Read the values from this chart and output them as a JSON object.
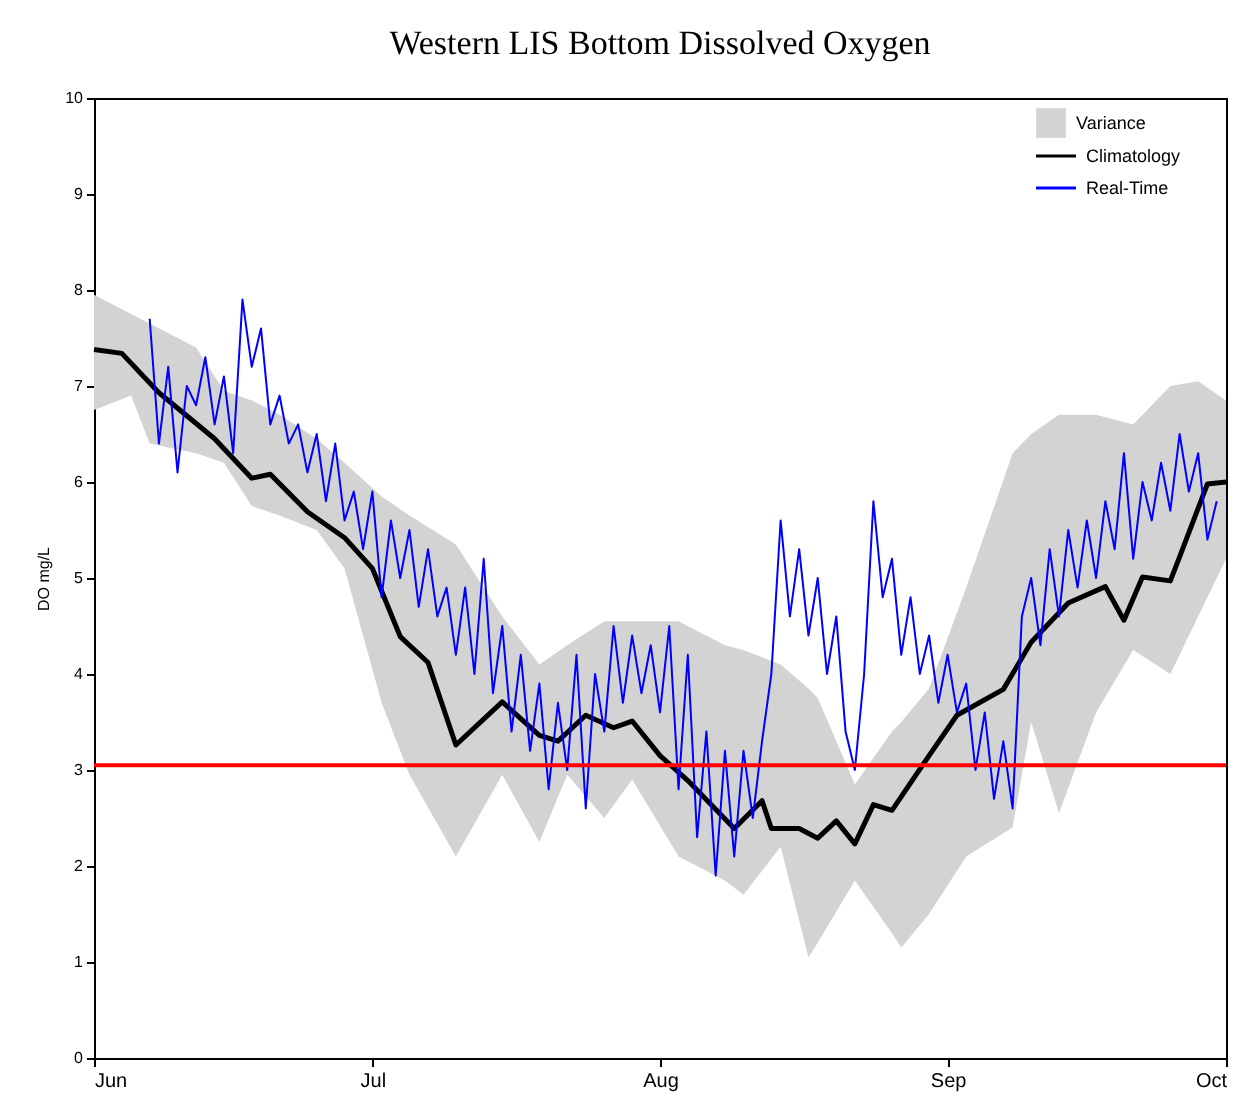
{
  "chart_data": {
    "type": "line",
    "title": "Western LIS Bottom Dissolved Oxygen",
    "ylabel": "DO mg/L",
    "xlim": [
      "--06-01",
      "--10-01"
    ],
    "xticks": [
      {
        "value": "--06-01",
        "label": "Jun"
      },
      {
        "value": "--07-01",
        "label": "Jul"
      },
      {
        "value": "--08-01",
        "label": "Aug"
      },
      {
        "value": "--09-01",
        "label": "Sep"
      },
      {
        "value": "--10-01",
        "label": "Oct"
      }
    ],
    "ylim": [
      0,
      10
    ],
    "yticks": [
      0,
      1,
      2,
      3,
      4,
      5,
      6,
      7,
      8,
      9,
      10
    ],
    "legend": "top right",
    "grid": false,
    "ref_lines": [
      {
        "axis": "y",
        "value": 3.05,
        "color": "#ff0000"
      }
    ],
    "series": [
      {
        "name": "Variance",
        "type": "area",
        "color": "#d3d3d3",
        "values": [
          null,
          null,
          null,
          null,
          null,
          null,
          null,
          null,
          null,
          null,
          null,
          null,
          null,
          null,
          null,
          null,
          null,
          null,
          null,
          null,
          null,
          null,
          null,
          null,
          null,
          null,
          null,
          null,
          null,
          null,
          null,
          null,
          null,
          null,
          null,
          null
        ],
        "x": [
          "--06-01",
          "--06-05",
          "--06-07",
          "--06-12",
          "--06-15",
          "--06-18",
          "--06-21",
          "--06-25",
          "--06-28",
          "--07-02",
          "--07-05",
          "--07-10",
          "--07-15",
          "--07-19",
          "--07-22",
          "--07-26",
          "--07-29",
          "--08-03",
          "--08-08",
          "--08-10",
          "--08-14",
          "--08-17",
          "--08-18",
          "--08-22",
          "--08-26",
          "--08-27",
          "--08-30",
          "--09-03",
          "--09-08",
          "--09-10",
          "--09-13",
          "--09-17",
          "--09-21",
          "--09-25",
          "--09-28",
          "--10-01"
        ],
        "upper": [
          7.95,
          7.75,
          7.65,
          7.4,
          6.95,
          6.85,
          6.7,
          6.45,
          6.2,
          5.85,
          5.65,
          5.35,
          4.6,
          4.1,
          4.3,
          4.55,
          4.55,
          4.55,
          4.3,
          4.25,
          4.1,
          3.85,
          3.75,
          2.85,
          3.4,
          3.5,
          3.85,
          4.9,
          6.3,
          6.5,
          6.7,
          6.7,
          6.6,
          7.0,
          7.05,
          6.85
        ],
        "lower": [
          6.75,
          6.9,
          6.4,
          6.3,
          6.2,
          5.75,
          5.65,
          5.5,
          5.1,
          3.7,
          2.95,
          2.1,
          2.95,
          2.25,
          2.95,
          2.5,
          2.9,
          2.1,
          1.85,
          1.7,
          2.2,
          1.05,
          1.2,
          1.85,
          1.3,
          1.15,
          1.5,
          2.1,
          2.4,
          3.5,
          2.55,
          3.6,
          4.25,
          4.0,
          4.6,
          5.2
        ]
      },
      {
        "name": "Climatology",
        "type": "line",
        "color": "#000000",
        "x": [
          "--06-01",
          "--06-04",
          "--06-08",
          "--06-14",
          "--06-18",
          "--06-20",
          "--06-24",
          "--06-28",
          "--07-01",
          "--07-04",
          "--07-07",
          "--07-10",
          "--07-15",
          "--07-19",
          "--07-21",
          "--07-24",
          "--07-27",
          "--07-29",
          "--08-01",
          "--08-04",
          "--08-09",
          "--08-12",
          "--08-13",
          "--08-16",
          "--08-18",
          "--08-20",
          "--08-22",
          "--08-24",
          "--08-26",
          "--08-30",
          "--09-02",
          "--09-07",
          "--09-10",
          "--09-14",
          "--09-18",
          "--09-20",
          "--09-22",
          "--09-25",
          "--09-26",
          "--09-29",
          "--10-01"
        ],
        "values": [
          7.38,
          7.34,
          6.93,
          6.45,
          6.04,
          6.08,
          5.69,
          5.42,
          5.1,
          4.39,
          4.12,
          3.26,
          3.71,
          3.36,
          3.3,
          3.57,
          3.44,
          3.51,
          3.15,
          2.89,
          2.39,
          2.68,
          2.39,
          2.39,
          2.29,
          2.47,
          2.23,
          2.64,
          2.58,
          3.15,
          3.57,
          3.84,
          4.33,
          4.74,
          4.91,
          4.56,
          5.01,
          4.97,
          5.22,
          5.98,
          6.0
        ]
      },
      {
        "name": "Real-Time",
        "type": "line",
        "color": "#0000ff",
        "x": [
          "--06-07",
          "--06-08",
          "--06-09",
          "--06-10",
          "--06-11",
          "--06-12",
          "--06-13",
          "--06-14",
          "--06-15",
          "--06-16",
          "--06-17",
          "--06-18",
          "--06-19",
          "--06-20",
          "--06-21",
          "--06-22",
          "--06-23",
          "--06-24",
          "--06-25",
          "--06-26",
          "--06-27",
          "--06-28",
          "--06-29",
          "--06-30",
          "--07-01",
          "--07-02",
          "--07-03",
          "--07-04",
          "--07-05",
          "--07-06",
          "--07-07",
          "--07-08",
          "--07-09",
          "--07-10",
          "--07-11",
          "--07-12",
          "--07-13",
          "--07-14",
          "--07-15",
          "--07-16",
          "--07-17",
          "--07-18",
          "--07-19",
          "--07-20",
          "--07-21",
          "--07-22",
          "--07-23",
          "--07-24",
          "--07-25",
          "--07-26",
          "--07-27",
          "--07-28",
          "--07-29",
          "--07-30",
          "--07-31",
          "--08-01",
          "--08-02",
          "--08-03",
          "--08-04",
          "--08-05",
          "--08-06",
          "--08-07",
          "--08-08",
          "--08-09",
          "--08-10",
          "--08-11",
          "--08-12",
          "--08-13",
          "--08-14",
          "--08-15",
          "--08-16",
          "--08-17",
          "--08-18",
          "--08-19",
          "--08-20",
          "--08-21",
          "--08-22",
          "--08-23",
          "--08-24",
          "--08-25",
          "--08-26",
          "--08-27",
          "--08-28",
          "--08-29",
          "--08-30",
          "--08-31",
          "--09-01",
          "--09-02",
          "--09-03",
          "--09-04",
          "--09-05",
          "--09-06",
          "--09-07",
          "--09-08",
          "--09-09",
          "--09-10",
          "--09-11",
          "--09-12",
          "--09-13",
          "--09-14",
          "--09-15",
          "--09-16",
          "--09-17",
          "--09-18",
          "--09-19",
          "--09-20",
          "--09-21",
          "--09-22",
          "--09-23",
          "--09-24",
          "--09-25",
          "--09-26",
          "--09-27",
          "--09-28",
          "--09-29",
          "--09-30"
        ],
        "values": [
          7.7,
          6.4,
          7.2,
          6.1,
          7.0,
          6.8,
          7.3,
          6.6,
          7.1,
          6.3,
          7.9,
          7.2,
          7.6,
          6.6,
          6.9,
          6.4,
          6.6,
          6.1,
          6.5,
          5.8,
          6.4,
          5.6,
          5.9,
          5.3,
          5.9,
          4.8,
          5.6,
          5.0,
          5.5,
          4.7,
          5.3,
          4.6,
          4.9,
          4.2,
          4.9,
          4.0,
          5.2,
          3.8,
          4.5,
          3.4,
          4.2,
          3.2,
          3.9,
          2.8,
          3.7,
          3.0,
          4.2,
          2.6,
          4.0,
          3.4,
          4.5,
          3.7,
          4.4,
          3.8,
          4.3,
          3.6,
          4.5,
          2.8,
          4.2,
          2.3,
          3.4,
          1.9,
          3.2,
          2.1,
          3.2,
          2.5,
          3.3,
          4.0,
          5.6,
          4.6,
          5.3,
          4.4,
          5.0,
          4.0,
          4.6,
          3.4,
          3.0,
          4.0,
          5.8,
          4.8,
          5.2,
          4.2,
          4.8,
          4.0,
          4.4,
          3.7,
          4.2,
          3.6,
          3.9,
          3.0,
          3.6,
          2.7,
          3.3,
          2.6,
          4.6,
          5.0,
          4.3,
          5.3,
          4.6,
          5.5,
          4.9,
          5.6,
          5.0,
          5.8,
          5.3,
          6.3,
          5.2,
          6.0,
          5.6,
          6.2,
          5.7,
          6.5,
          5.9,
          6.3,
          5.4,
          5.8
        ]
      }
    ]
  }
}
